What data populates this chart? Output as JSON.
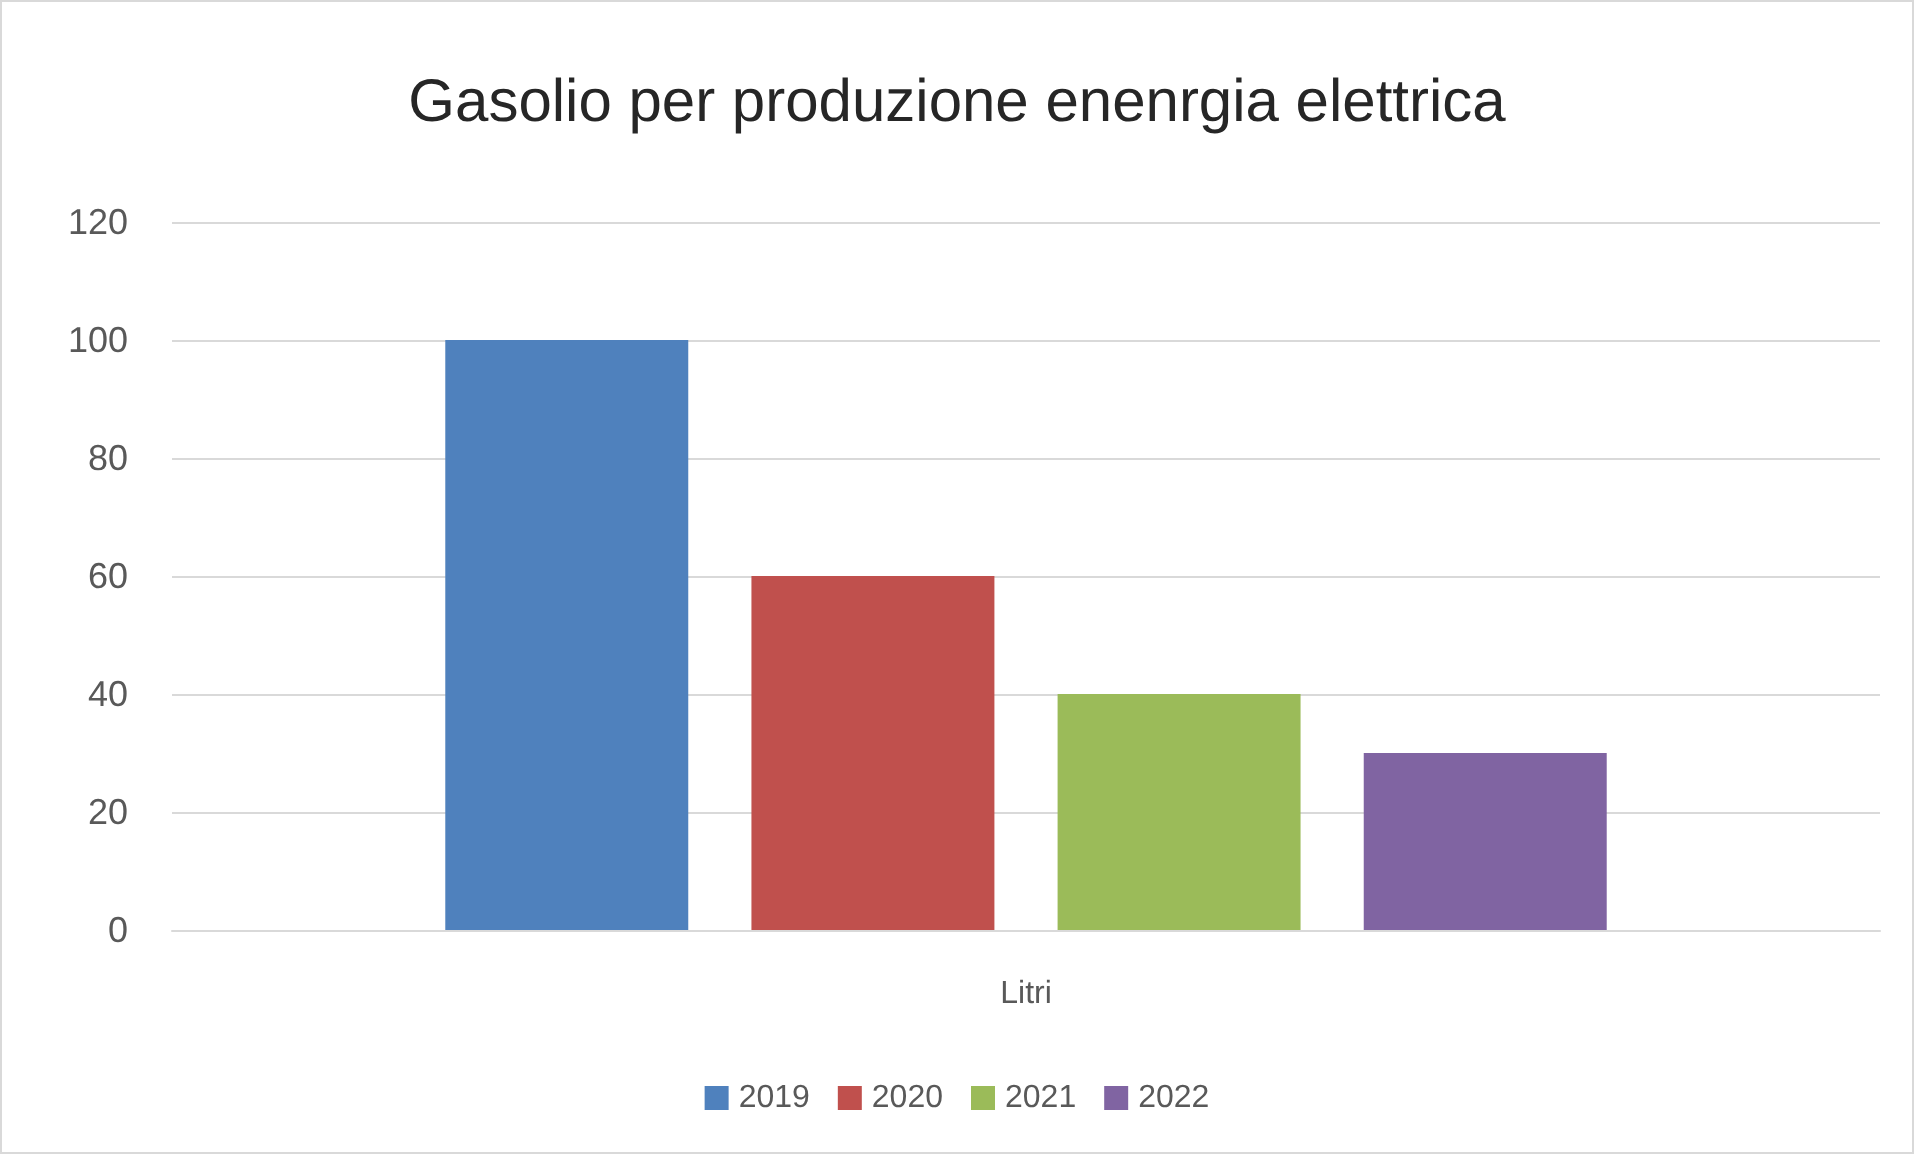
{
  "chart_data": {
    "type": "bar",
    "title": "Gasolio per produzione enenrgia elettrica",
    "categories": [
      "Litri"
    ],
    "series": [
      {
        "name": "2019",
        "color": "#4f81bd",
        "values": [
          100
        ]
      },
      {
        "name": "2020",
        "color": "#c0504d",
        "values": [
          60
        ]
      },
      {
        "name": "2021",
        "color": "#9bbb59",
        "values": [
          40
        ]
      },
      {
        "name": "2022",
        "color": "#8064a2",
        "values": [
          30
        ]
      }
    ],
    "ylim": [
      0,
      120
    ],
    "yticks": [
      0,
      20,
      40,
      60,
      80,
      100,
      120
    ],
    "grid": "y",
    "legend": "bottom"
  }
}
